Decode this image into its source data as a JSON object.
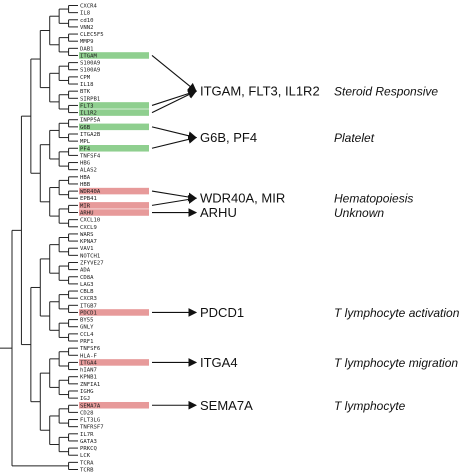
{
  "genes": [
    {
      "name": "CXCR4",
      "highlight": null
    },
    {
      "name": "IL8",
      "highlight": null
    },
    {
      "name": "cd10",
      "highlight": null
    },
    {
      "name": "VNN2",
      "highlight": null
    },
    {
      "name": "CLEC5F5",
      "highlight": null
    },
    {
      "name": "MMP9",
      "highlight": null
    },
    {
      "name": "DAB1",
      "highlight": null
    },
    {
      "name": "ITGAM",
      "highlight": "green"
    },
    {
      "name": "S100A9",
      "highlight": null
    },
    {
      "name": "S100A9",
      "highlight": null
    },
    {
      "name": "CPM",
      "highlight": null
    },
    {
      "name": "IL18",
      "highlight": null
    },
    {
      "name": "BTK",
      "highlight": null
    },
    {
      "name": "SIRPB1",
      "highlight": null
    },
    {
      "name": "FLT3",
      "highlight": "green"
    },
    {
      "name": "IL1R2",
      "highlight": "green"
    },
    {
      "name": "INPP5A",
      "highlight": null
    },
    {
      "name": "G6B",
      "highlight": "green"
    },
    {
      "name": "ITGA2B",
      "highlight": null
    },
    {
      "name": "MPL",
      "highlight": null
    },
    {
      "name": "PF4",
      "highlight": "green"
    },
    {
      "name": "TNFSF4",
      "highlight": null
    },
    {
      "name": "HBG",
      "highlight": null
    },
    {
      "name": "ALAS2",
      "highlight": null
    },
    {
      "name": "HBA",
      "highlight": null
    },
    {
      "name": "HBB",
      "highlight": null
    },
    {
      "name": "WDR40A",
      "highlight": "red"
    },
    {
      "name": "EPB41",
      "highlight": null
    },
    {
      "name": "MIR",
      "highlight": "red"
    },
    {
      "name": "ARHU",
      "highlight": "red"
    },
    {
      "name": "CXCL10",
      "highlight": null
    },
    {
      "name": "CXCL9",
      "highlight": null
    },
    {
      "name": "WARS",
      "highlight": null
    },
    {
      "name": "KPNA7",
      "highlight": null
    },
    {
      "name": "VAV1",
      "highlight": null
    },
    {
      "name": "NOTCH1",
      "highlight": null
    },
    {
      "name": "ZFYVE27",
      "highlight": null
    },
    {
      "name": "ADA",
      "highlight": null
    },
    {
      "name": "CD8A",
      "highlight": null
    },
    {
      "name": "LAG3",
      "highlight": null
    },
    {
      "name": "CBLB",
      "highlight": null
    },
    {
      "name": "CXCR3",
      "highlight": null
    },
    {
      "name": "ITGB7",
      "highlight": null
    },
    {
      "name": "PDCD1",
      "highlight": "red"
    },
    {
      "name": "BY55",
      "highlight": null
    },
    {
      "name": "GNLY",
      "highlight": null
    },
    {
      "name": "CCL4",
      "highlight": null
    },
    {
      "name": "PRF1",
      "highlight": null
    },
    {
      "name": "TNFSF6",
      "highlight": null
    },
    {
      "name": "HLA-F",
      "highlight": null
    },
    {
      "name": "ITGA4",
      "highlight": "red"
    },
    {
      "name": "hIAN7",
      "highlight": null
    },
    {
      "name": "KPNB1",
      "highlight": null
    },
    {
      "name": "ZNFIA1",
      "highlight": null
    },
    {
      "name": "IGHG",
      "highlight": null
    },
    {
      "name": "IGJ",
      "highlight": null
    },
    {
      "name": "SEMA7A",
      "highlight": "red"
    },
    {
      "name": "CD28",
      "highlight": null
    },
    {
      "name": "FLT3LG",
      "highlight": null
    },
    {
      "name": "TNFRSF7",
      "highlight": null
    },
    {
      "name": "IL7R",
      "highlight": null
    },
    {
      "name": "GATA3",
      "highlight": null
    },
    {
      "name": "PRKCQ",
      "highlight": null
    },
    {
      "name": "LCK",
      "highlight": null
    },
    {
      "name": "TCRA",
      "highlight": null
    },
    {
      "name": "TCRB",
      "highlight": null
    }
  ],
  "groups": [
    {
      "label": "ITGAM, FLT3, IL1R2",
      "category": "Steroid Responsive",
      "sources": [
        "ITGAM",
        "FLT3",
        "IL1R2"
      ]
    },
    {
      "label": "G6B, PF4",
      "category": "Platelet",
      "sources": [
        "G6B",
        "PF4"
      ]
    },
    {
      "label": "WDR40A, MIR",
      "category": "Hematopoiesis",
      "sources": [
        "WDR40A",
        "MIR"
      ]
    },
    {
      "label": "ARHU",
      "category": "Unknown",
      "sources": [
        "ARHU"
      ]
    },
    {
      "label": "PDCD1",
      "category": "T lymphocyte activation",
      "sources": [
        "PDCD1"
      ]
    },
    {
      "label": "ITGA4",
      "category": "T lymphocyte migration",
      "sources": [
        "ITGA4"
      ]
    },
    {
      "label": "SEMA7A",
      "category": "T lymphocyte",
      "sources": [
        "SEMA7A"
      ]
    }
  ],
  "colors": {
    "green_highlight": "#8fcf8f",
    "red_highlight": "#e79a9a",
    "line": "#222222",
    "text": "#111111"
  }
}
